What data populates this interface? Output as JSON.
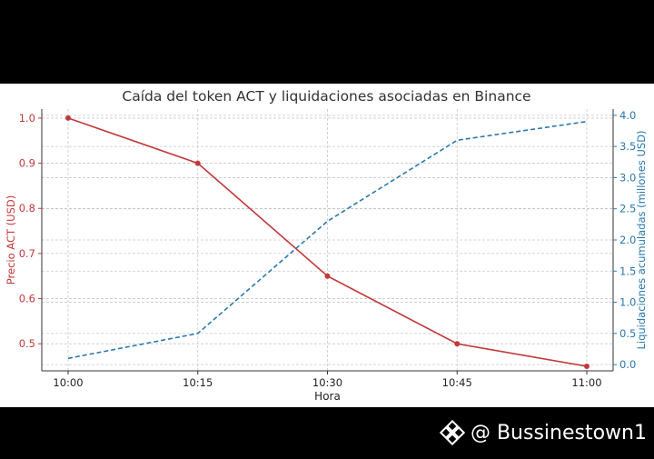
{
  "chart_data": {
    "type": "line",
    "title": "Caída del token ACT y liquidaciones asociadas en Binance",
    "xlabel": "Hora",
    "ylabel_left": "Precio ACT (USD)",
    "ylabel_right": "Liquidaciones acumuladas (millones USD)",
    "categories": [
      "10:00",
      "10:15",
      "10:30",
      "10:45",
      "11:00"
    ],
    "ylim_left": [
      0.44,
      1.02
    ],
    "yticks_left": [
      0.5,
      0.6,
      0.7,
      0.8,
      0.9,
      1.0
    ],
    "ylim_right": [
      -0.1,
      4.1
    ],
    "yticks_right": [
      0.0,
      0.5,
      1.0,
      1.5,
      2.0,
      2.5,
      3.0,
      3.5,
      4.0
    ],
    "grid": true,
    "colors": {
      "price": "#c0393b",
      "liquidations": "#2a78ad",
      "grid": "#c8c8c8"
    },
    "series": [
      {
        "axis": "left",
        "style": "solid-markers",
        "values": [
          1.0,
          0.9,
          0.65,
          0.5,
          0.45
        ]
      },
      {
        "axis": "right",
        "style": "dashed",
        "values": [
          0.1,
          0.5,
          2.3,
          3.6,
          3.9
        ]
      }
    ]
  },
  "watermark": {
    "icon": "binance-logo-icon",
    "text": "@ Bussinestown1"
  }
}
